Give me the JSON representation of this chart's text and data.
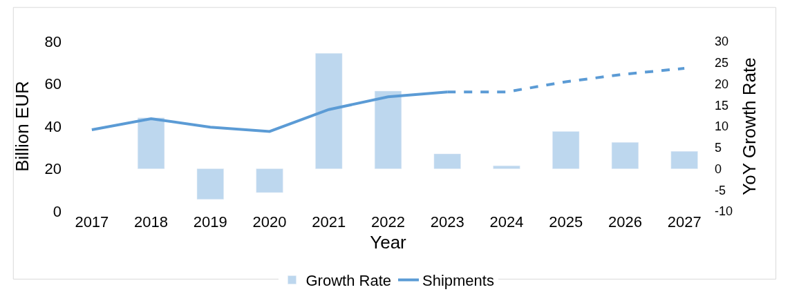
{
  "chart_data": {
    "type": "bar",
    "xlabel": "Year",
    "ylabel": "Billion EUR",
    "y2label": "YoY Growth Rate",
    "categories": [
      "2017",
      "2018",
      "2019",
      "2020",
      "2021",
      "2022",
      "2023",
      "2024",
      "2025",
      "2026",
      "2027"
    ],
    "series": [
      {
        "name": "Growth Rate",
        "axis": "y2",
        "color": "#bdd7ee",
        "values": [
          null,
          12,
          -7.2,
          -5.6,
          27.2,
          18.3,
          3.5,
          0.7,
          8.8,
          6.2,
          4.1
        ]
      },
      {
        "name": "Shipments",
        "type": "line",
        "axis": "y",
        "color": "#5b9bd5",
        "line_style": "solid",
        "values": [
          38.4,
          43.6,
          39.6,
          37.6,
          47.9,
          53.9,
          56.2,
          null,
          null,
          null,
          null
        ]
      },
      {
        "type": "line",
        "axis": "y",
        "color": "#5b9bd5",
        "line_style": "dashed",
        "values": [
          null,
          null,
          null,
          null,
          null,
          null,
          56.2,
          56.2,
          61,
          64.6,
          67.3
        ]
      }
    ],
    "ylim": [
      0,
      80
    ],
    "yticks": [
      0,
      20,
      40,
      60,
      80
    ],
    "y2lim": [
      -10,
      30
    ],
    "y2ticks": [
      -10,
      -5,
      0,
      5,
      10,
      15,
      20,
      25,
      30
    ],
    "legend": "bottom"
  }
}
